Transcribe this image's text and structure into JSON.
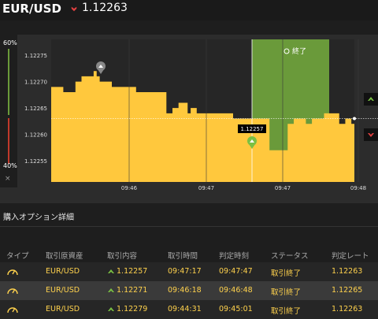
{
  "header": {
    "pair": "EUR/USD",
    "price": "1.12263"
  },
  "sidebar": {
    "top_pct": "60%",
    "bottom_pct": "40%",
    "close": "×"
  },
  "chart_data": {
    "type": "area",
    "y_ticks": [
      "1.12275",
      "1.12270",
      "1.12265",
      "1.12260",
      "1.12255"
    ],
    "x_ticks": [
      "09:46",
      "09:47",
      "09:47",
      "09:48"
    ],
    "marker_label": "1.12257",
    "expiry_label": "終了",
    "y_range": [
      1.12251,
      1.12278
    ],
    "strike": 1.12263,
    "x": [
      0,
      0.02,
      0.04,
      0.06,
      0.08,
      0.09,
      0.1,
      0.12,
      0.14,
      0.15,
      0.16,
      0.17,
      0.18,
      0.2,
      0.22,
      0.24,
      0.25,
      0.26,
      0.28,
      0.3,
      0.32,
      0.33,
      0.35,
      0.38,
      0.4,
      0.42,
      0.45,
      0.46,
      0.48,
      0.5,
      0.52,
      0.54,
      0.55,
      0.58,
      0.6,
      0.62,
      0.63,
      0.65,
      0.66,
      0.68,
      0.7,
      0.72,
      0.74,
      0.75,
      0.78,
      0.8,
      0.82,
      0.84,
      0.86,
      0.88,
      0.89,
      0.9,
      0.92,
      0.94,
      0.95,
      0.97,
      0.99,
      1.0
    ],
    "y": [
      1.12269,
      1.12269,
      1.12268,
      1.12268,
      1.1227,
      1.1227,
      1.12271,
      1.12271,
      1.12272,
      1.12271,
      1.1227,
      1.1227,
      1.1227,
      1.12269,
      1.12269,
      1.12269,
      1.12269,
      1.12269,
      1.12268,
      1.12268,
      1.12268,
      1.12268,
      1.12268,
      1.12264,
      1.12265,
      1.12266,
      1.12264,
      1.12265,
      1.12264,
      1.12264,
      1.12264,
      1.12264,
      1.12264,
      1.12264,
      1.12263,
      1.12263,
      1.12263,
      1.12263,
      1.12263,
      1.12263,
      1.12263,
      1.12257,
      1.12257,
      1.12257,
      1.12262,
      1.12263,
      1.12263,
      1.12262,
      1.12263,
      1.12263,
      1.12263,
      1.12264,
      1.12264,
      1.12264,
      1.12262,
      1.12263,
      1.12262,
      1.12263
    ]
  },
  "details": {
    "title": "購入オプション詳細",
    "headers": [
      "タイプ",
      "取引原資産",
      "取引内容",
      "取引時間",
      "判定時刻",
      "ステータス",
      "判定レート"
    ],
    "rows": [
      {
        "asset": "EUR/USD",
        "rate": "1.12257",
        "time": "09:47:17",
        "judge": "09:47:47",
        "status": "取引終了",
        "result": "1.12263"
      },
      {
        "asset": "EUR/USD",
        "rate": "1.12271",
        "time": "09:46:18",
        "judge": "09:46:48",
        "status": "取引終了",
        "result": "1.12265"
      },
      {
        "asset": "EUR/USD",
        "rate": "1.12279",
        "time": "09:44:31",
        "judge": "09:45:01",
        "status": "取引終了",
        "result": "1.12263"
      }
    ]
  },
  "colors": {
    "area": "#ffc83d",
    "expiry_zone": "#6a9a3a",
    "up": "#7ac043",
    "down": "#e04040"
  }
}
